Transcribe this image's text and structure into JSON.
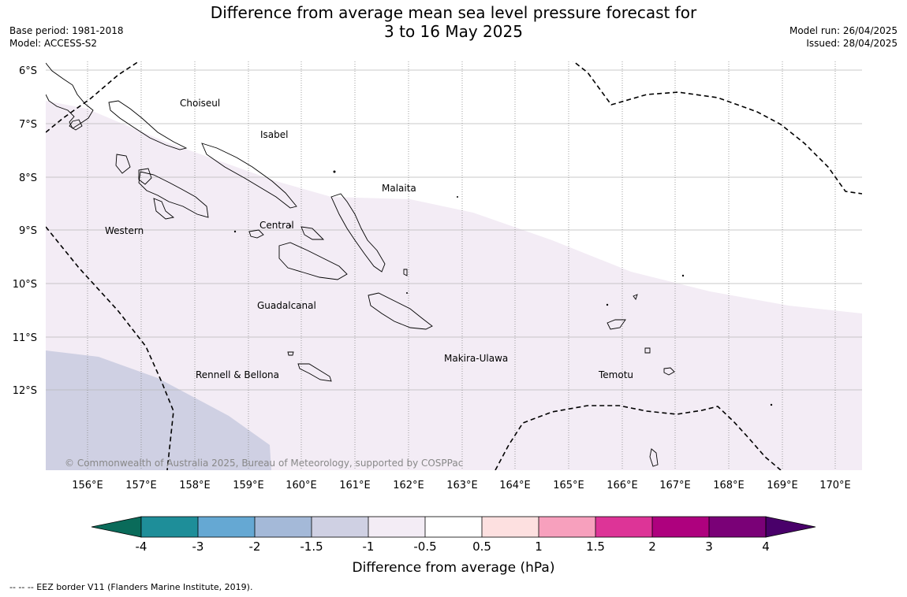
{
  "header": {
    "title_line1": "Difference from average mean sea level pressure forecast for",
    "title_line2": "3 to 16 May 2025",
    "base_period": "Base period: 1981-2018",
    "model": "Model: ACCESS-S2",
    "model_run": "Model run: 26/04/2025",
    "issued": "Issued: 28/04/2025"
  },
  "map": {
    "lat_labels": [
      "6°S",
      "7°S",
      "8°S",
      "9°S",
      "10°S",
      "11°S",
      "12°S"
    ],
    "lon_labels": [
      "156°E",
      "157°E",
      "158°E",
      "159°E",
      "160°E",
      "161°E",
      "162°E",
      "163°E",
      "164°E",
      "165°E",
      "166°E",
      "167°E",
      "168°E",
      "169°E",
      "170°E"
    ],
    "provinces": {
      "choiseul": "Choiseul",
      "isabel": "Isabel",
      "malaita": "Malaita",
      "western": "Western",
      "central": "Central",
      "guadalcanal": "Guadalcanal",
      "makira": "Makira-Ulawa",
      "rennell": "Rennell & Bellona",
      "temotu": "Temotu"
    },
    "copyright": "© Commonwealth of Australia 2025, Bureau of Meteorology, supported by COSPPac",
    "fill_colors": {
      "band_-1_-0.5": "#f3ecf5",
      "band_-1.5_-1": "#cfd0e3"
    }
  },
  "colorbar": {
    "tick_labels": [
      "-4",
      "-3",
      "-2",
      "-1.5",
      "-1",
      "-0.5",
      "0.5",
      "1",
      "1.5",
      "2",
      "3",
      "4"
    ],
    "colors": [
      "#0a6b5a",
      "#1e8e99",
      "#65a8d3",
      "#a4b9d8",
      "#cfd0e3",
      "#f3ecf5",
      "#ffffff",
      "#fde0e0",
      "#f7a0bd",
      "#dd3497",
      "#ae017e",
      "#7a0177",
      "#49006a"
    ],
    "label": "Difference from average (hPa)"
  },
  "footer": {
    "legend_text": "--  --  -- EEZ border V11 (Flanders Marine Institute, 2019)."
  }
}
